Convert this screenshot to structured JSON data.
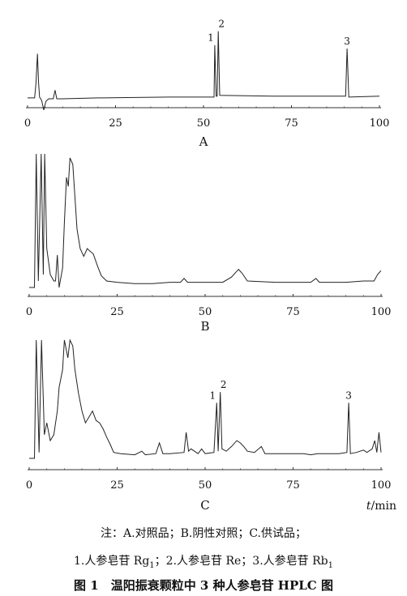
{
  "chart_data": [
    {
      "type": "line",
      "panel_label": "A",
      "xlim": [
        0,
        100
      ],
      "x_ticks": [
        0,
        25,
        50,
        75,
        100
      ],
      "peaks": [
        {
          "label": "1",
          "x": 53.2,
          "height": 0.62
        },
        {
          "label": "2",
          "x": 54.2,
          "height": 0.78
        },
        {
          "label": "3",
          "x": 90.8,
          "height": 0.58
        }
      ],
      "xlabel": ""
    },
    {
      "type": "line",
      "panel_label": "B",
      "xlim": [
        0,
        100
      ],
      "x_ticks": [
        0,
        25,
        50,
        75,
        100
      ],
      "peaks": [],
      "xlabel": ""
    },
    {
      "type": "line",
      "panel_label": "C",
      "xlim": [
        0,
        100
      ],
      "x_ticks": [
        0,
        25,
        50,
        75,
        100
      ],
      "peaks": [
        {
          "label": "1",
          "x": 53.3,
          "height": 0.47
        },
        {
          "label": "2",
          "x": 54.3,
          "height": 0.56
        },
        {
          "label": "3",
          "x": 90.8,
          "height": 0.47
        }
      ],
      "xlabel": "t/min"
    }
  ],
  "notes": {
    "line1": "注：A.对照品；B.阴性对照；C.供试品；",
    "line2_parts": [
      "1.人参皂苷 Rg",
      "1",
      "；2.人参皂苷 Re；3.人参皂苷 Rb",
      "1"
    ],
    "caption": "图 1　温阳振衰颗粒中 3 种人参皂苷 HPLC 图"
  }
}
